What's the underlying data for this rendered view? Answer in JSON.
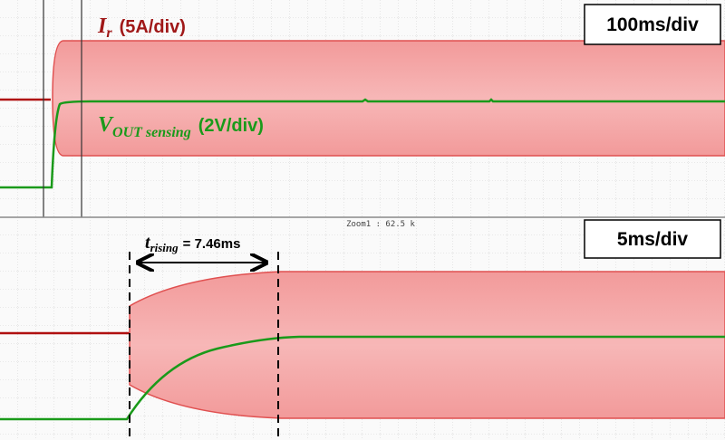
{
  "top_panel": {
    "timebase": "100ms/div",
    "current_label": {
      "symbol": "I",
      "subscript": "r",
      "scale": "(5A/div)"
    },
    "voltage_label": {
      "symbol": "V",
      "subscript": "OUT sensing",
      "scale": "(2V/div)"
    }
  },
  "zoom_label": "Zoom1 : 62.5 k",
  "bottom_panel": {
    "timebase": "5ms/div",
    "rise_time": {
      "symbol": "t",
      "subscript": "rising",
      "value": "= 7.46ms"
    }
  }
}
